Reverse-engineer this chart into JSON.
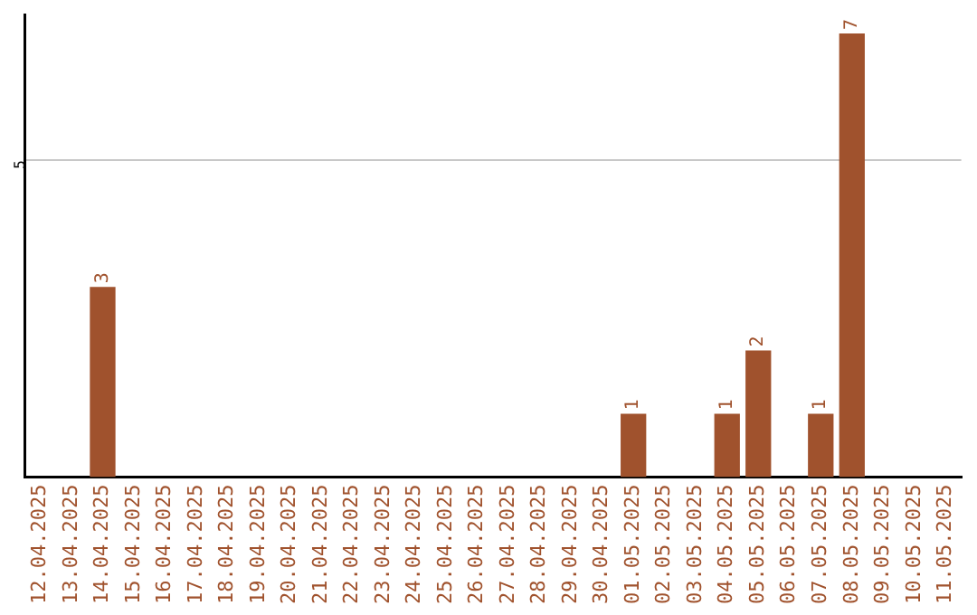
{
  "chart_data": {
    "type": "bar",
    "categories": [
      "12.04.2025",
      "13.04.2025",
      "14.04.2025",
      "15.04.2025",
      "16.04.2025",
      "17.04.2025",
      "18.04.2025",
      "19.04.2025",
      "20.04.2025",
      "21.04.2025",
      "22.04.2025",
      "23.04.2025",
      "24.04.2025",
      "25.04.2025",
      "26.04.2025",
      "27.04.2025",
      "28.04.2025",
      "29.04.2025",
      "30.04.2025",
      "01.05.2025",
      "02.05.2025",
      "03.05.2025",
      "04.05.2025",
      "05.05.2025",
      "06.05.2025",
      "07.05.2025",
      "08.05.2025",
      "09.05.2025",
      "10.05.2025",
      "11.05.2025"
    ],
    "values": [
      0,
      0,
      3,
      0,
      0,
      0,
      0,
      0,
      0,
      0,
      0,
      0,
      0,
      0,
      0,
      0,
      0,
      0,
      0,
      1,
      0,
      0,
      1,
      2,
      0,
      1,
      7,
      0,
      0,
      0
    ],
    "value_labels": [
      null,
      null,
      "3",
      null,
      null,
      null,
      null,
      null,
      null,
      null,
      null,
      null,
      null,
      null,
      null,
      null,
      null,
      null,
      null,
      "1",
      null,
      null,
      "1",
      "2",
      null,
      "1",
      "7",
      null,
      null,
      null
    ],
    "color": "#a0522d",
    "ylim": [
      0,
      7.3
    ],
    "yticks": [
      5
    ],
    "grid": "y",
    "legend": false
  }
}
